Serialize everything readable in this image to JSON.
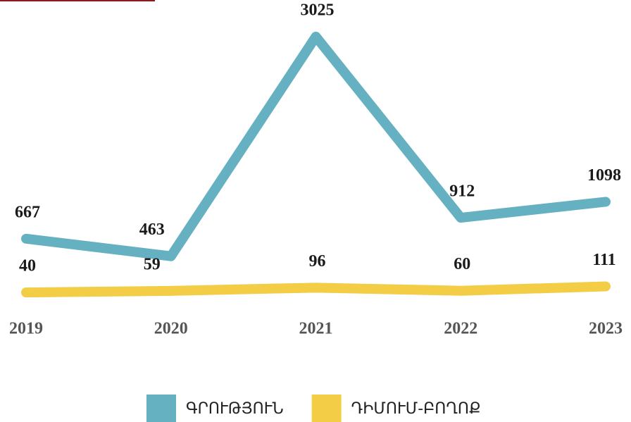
{
  "chart_data": {
    "type": "line",
    "categories": [
      "2019",
      "2020",
      "2021",
      "2022",
      "2023"
    ],
    "series": [
      {
        "name": "ԳՐՈՒԹՅՈՒՆ",
        "color": "#65b1c2",
        "values": [
          667,
          463,
          3025,
          912,
          1098
        ]
      },
      {
        "name": "ԴԻՄՈՒՄ-ԲՈՂՈՔ",
        "color": "#f2cd45",
        "values": [
          40,
          59,
          96,
          60,
          111
        ]
      }
    ]
  }
}
